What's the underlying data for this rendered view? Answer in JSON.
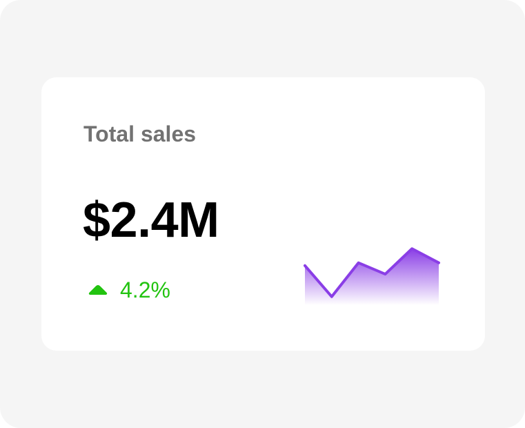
{
  "card": {
    "title": "Total sales",
    "value": "$2.4M",
    "change": {
      "text": "4.2%",
      "direction": "up",
      "icon": "triangle-up-icon",
      "color": "#22c310"
    }
  },
  "chart_data": {
    "type": "area",
    "x": [
      0,
      1,
      2,
      3,
      4,
      5
    ],
    "values": [
      14,
      3,
      15,
      11,
      20,
      15
    ],
    "ylim": [
      0,
      23
    ],
    "grid": false,
    "legend": "none",
    "color": "#8a3ee6"
  },
  "colors": {
    "background": "#f5f5f5",
    "card": "#ffffff",
    "title": "#727272",
    "value": "#000000",
    "accent": "#8a3ee6"
  }
}
